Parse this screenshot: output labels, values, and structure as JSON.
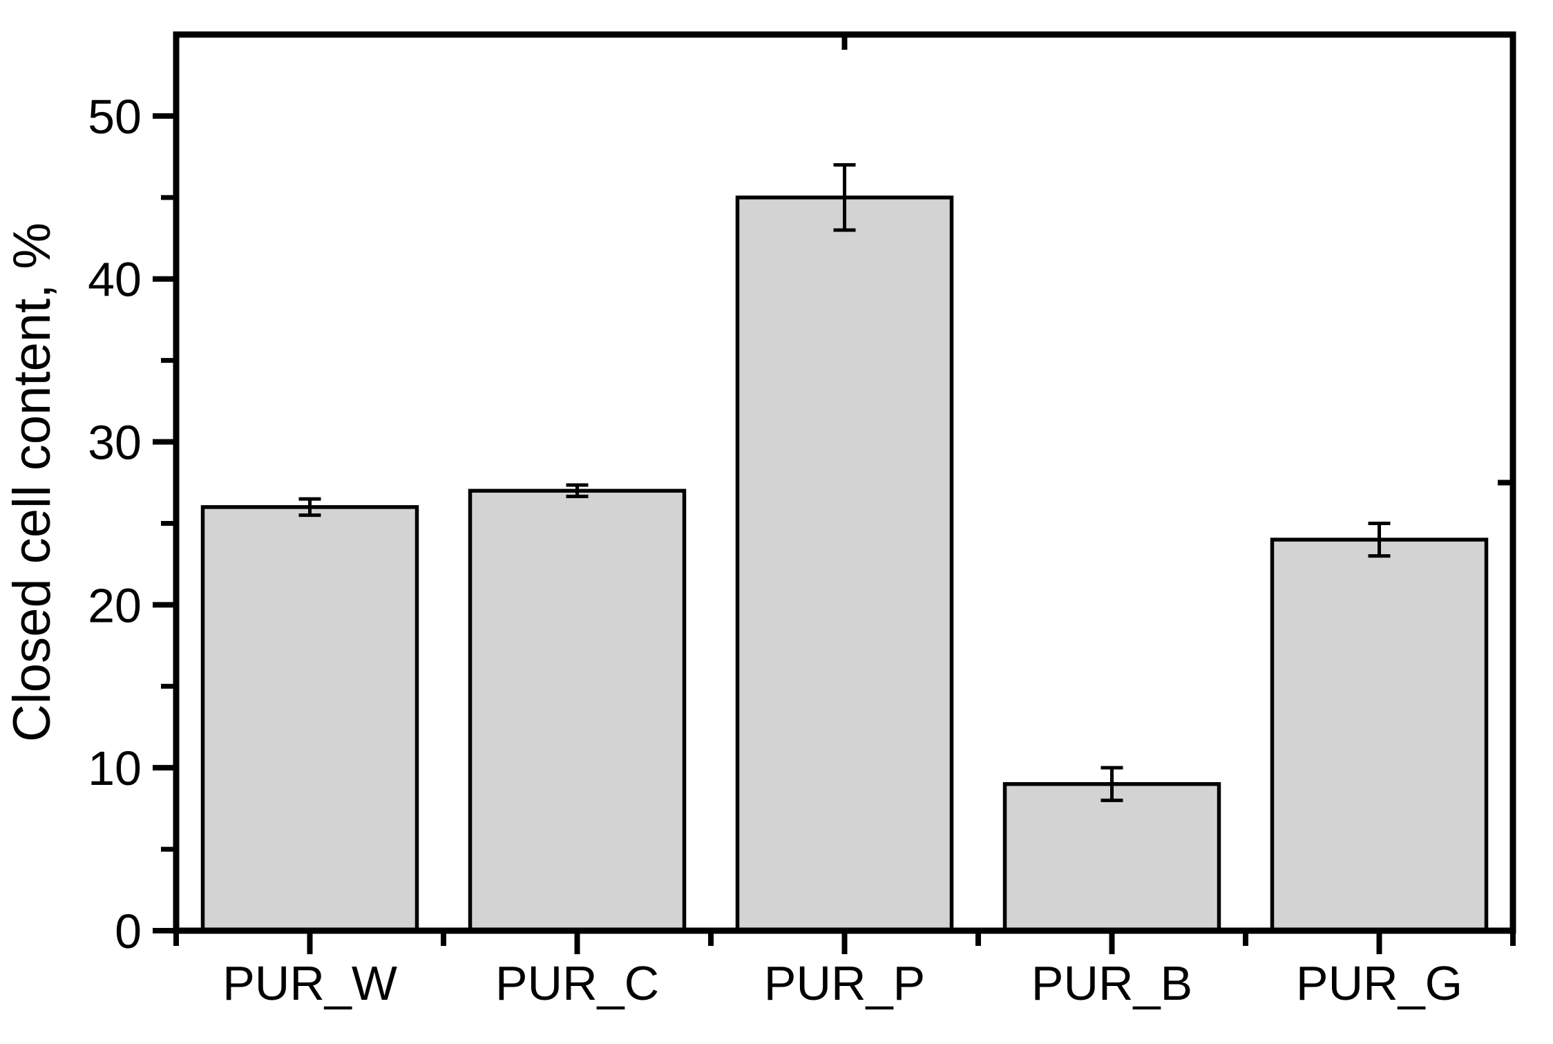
{
  "chart_data": {
    "type": "bar",
    "title": "",
    "xlabel": "",
    "ylabel": "Closed cell content, %",
    "categories": [
      "PUR_W",
      "PUR_C",
      "PUR_P",
      "PUR_B",
      "PUR_G"
    ],
    "values": [
      26,
      27,
      45,
      9,
      24
    ],
    "errors": [
      0.5,
      0.35,
      2,
      1,
      1
    ],
    "ylim": [
      0,
      55
    ],
    "yticks": [
      0,
      10,
      20,
      30,
      40,
      50
    ],
    "ytick_labels": [
      "0",
      "10",
      "20",
      "30",
      "40",
      "50"
    ],
    "minor_tick_step": 5,
    "grid": "off",
    "legend": "none",
    "bar_color": "#d3d3d3",
    "bar_edge_color": "#000000",
    "axis_color": "#000000",
    "error_bar_color": "#000000",
    "background_color": "#ffffff"
  }
}
